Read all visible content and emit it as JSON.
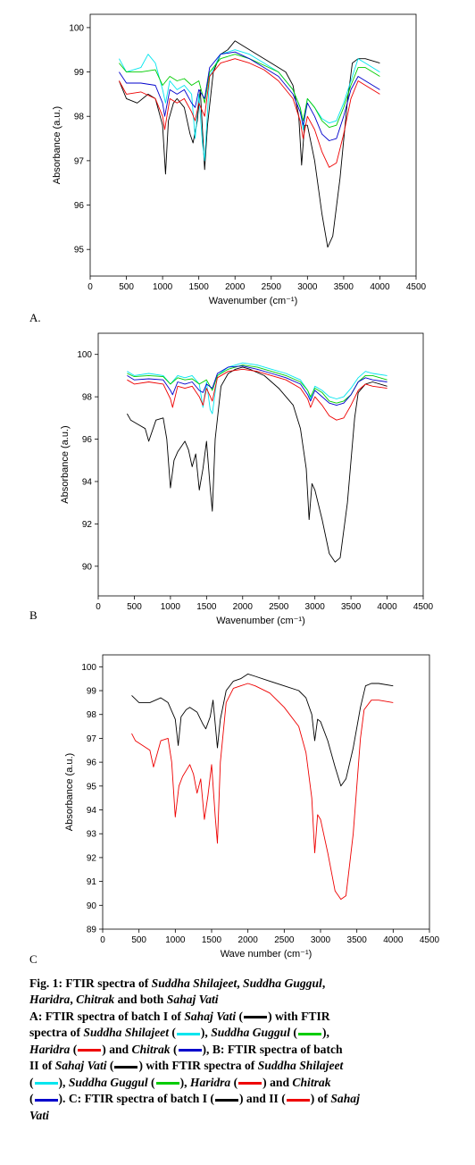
{
  "chart_data": [
    {
      "type": "line",
      "panel_label": "A.",
      "xlabel": "Wavenumber (cm⁻¹)",
      "ylabel": "Absorbance (a.u.)",
      "xlim": [
        0,
        4500
      ],
      "ylim": [
        94.4,
        100.3
      ],
      "xticks": [
        0,
        500,
        1000,
        1500,
        2000,
        2500,
        3000,
        3500,
        4000,
        4500
      ],
      "yticks": [
        95,
        96,
        97,
        98,
        99,
        100
      ],
      "series": [
        {
          "color": "#000000",
          "x": [
            400,
            500,
            650,
            800,
            900,
            1000,
            1040,
            1080,
            1150,
            1200,
            1300,
            1380,
            1420,
            1480,
            1520,
            1580,
            1620,
            1700,
            1800,
            1900,
            2000,
            2100,
            2300,
            2500,
            2700,
            2800,
            2880,
            2920,
            2960,
            3000,
            3100,
            3200,
            3280,
            3350,
            3450,
            3550,
            3620,
            3700,
            3800,
            4000
          ],
          "y": [
            98.8,
            98.4,
            98.3,
            98.5,
            98.4,
            97.8,
            96.7,
            97.9,
            98.3,
            98.4,
            98.2,
            97.6,
            97.4,
            97.9,
            98.6,
            96.8,
            97.8,
            99.0,
            99.4,
            99.5,
            99.7,
            99.6,
            99.4,
            99.2,
            99.0,
            98.7,
            98.0,
            96.9,
            97.8,
            97.8,
            97.0,
            95.8,
            95.05,
            95.3,
            96.6,
            98.3,
            99.2,
            99.3,
            99.3,
            99.2
          ]
        },
        {
          "color": "#00e5ee",
          "x": [
            400,
            500,
            700,
            800,
            900,
            1000,
            1040,
            1100,
            1200,
            1300,
            1400,
            1450,
            1500,
            1550,
            1580,
            1650,
            1800,
            2000,
            2200,
            2400,
            2600,
            2800,
            2900,
            2940,
            3000,
            3100,
            3200,
            3300,
            3400,
            3500,
            3600,
            3700,
            3800,
            4000
          ],
          "y": [
            99.3,
            99.0,
            99.1,
            99.4,
            99.2,
            98.6,
            98.3,
            98.8,
            98.6,
            98.7,
            98.5,
            97.5,
            98.5,
            97.4,
            97.0,
            98.9,
            99.4,
            99.5,
            99.4,
            99.2,
            99.0,
            98.6,
            98.2,
            97.7,
            98.4,
            98.2,
            97.95,
            97.85,
            97.9,
            98.3,
            98.8,
            99.3,
            99.2,
            99.0
          ]
        },
        {
          "color": "#00cc00",
          "x": [
            400,
            500,
            700,
            900,
            1000,
            1100,
            1200,
            1300,
            1400,
            1500,
            1580,
            1650,
            1800,
            2000,
            2200,
            2400,
            2600,
            2800,
            2900,
            2940,
            3000,
            3100,
            3200,
            3300,
            3400,
            3500,
            3600,
            3700,
            3800,
            4000
          ],
          "y": [
            99.2,
            99.0,
            99.0,
            99.05,
            98.7,
            98.9,
            98.8,
            98.85,
            98.7,
            98.8,
            98.3,
            99.0,
            99.3,
            99.4,
            99.3,
            99.15,
            99.0,
            98.6,
            98.2,
            97.9,
            98.4,
            98.2,
            97.9,
            97.75,
            97.8,
            98.2,
            98.7,
            99.1,
            99.1,
            98.9
          ]
        },
        {
          "color": "#ee0000",
          "x": [
            400,
            500,
            700,
            900,
            1000,
            1030,
            1100,
            1200,
            1300,
            1400,
            1450,
            1500,
            1580,
            1650,
            1800,
            2000,
            2200,
            2400,
            2600,
            2800,
            2900,
            2940,
            3000,
            3100,
            3200,
            3300,
            3400,
            3500,
            3600,
            3700,
            3800,
            4000
          ],
          "y": [
            98.8,
            98.5,
            98.55,
            98.4,
            98.0,
            97.7,
            98.4,
            98.3,
            98.4,
            98.1,
            97.9,
            98.3,
            98.0,
            98.9,
            99.2,
            99.3,
            99.2,
            99.05,
            98.8,
            98.4,
            97.9,
            97.5,
            98.0,
            97.7,
            97.2,
            96.85,
            96.95,
            97.6,
            98.4,
            98.8,
            98.7,
            98.5
          ]
        },
        {
          "color": "#0000cc",
          "x": [
            400,
            500,
            700,
            900,
            1000,
            1030,
            1100,
            1200,
            1300,
            1400,
            1450,
            1500,
            1580,
            1650,
            1800,
            2000,
            2200,
            2400,
            2600,
            2800,
            2900,
            2940,
            3000,
            3100,
            3200,
            3300,
            3400,
            3500,
            3600,
            3700,
            3800,
            4000
          ],
          "y": [
            99.0,
            98.75,
            98.75,
            98.7,
            98.3,
            98.0,
            98.6,
            98.5,
            98.6,
            98.3,
            98.2,
            98.6,
            98.4,
            99.1,
            99.4,
            99.45,
            99.3,
            99.1,
            98.9,
            98.5,
            98.1,
            97.8,
            98.3,
            98.0,
            97.6,
            97.45,
            97.5,
            98.0,
            98.6,
            98.9,
            98.8,
            98.6
          ]
        }
      ]
    },
    {
      "type": "line",
      "panel_label": "B",
      "xlabel": "Wavenumber (cm⁻¹)",
      "ylabel": "Absorbance (a.u.)",
      "xlim": [
        0,
        4500
      ],
      "ylim": [
        88.6,
        101
      ],
      "xticks": [
        0,
        500,
        1000,
        1500,
        2000,
        2500,
        3000,
        3500,
        4000,
        4500
      ],
      "yticks": [
        90,
        92,
        94,
        96,
        98,
        100
      ],
      "series": [
        {
          "color": "#000000",
          "x": [
            400,
            450,
            550,
            650,
            700,
            800,
            900,
            950,
            1000,
            1050,
            1100,
            1200,
            1250,
            1300,
            1350,
            1400,
            1450,
            1500,
            1550,
            1580,
            1620,
            1700,
            1800,
            1900,
            2000,
            2100,
            2300,
            2500,
            2700,
            2800,
            2880,
            2920,
            2960,
            3000,
            3100,
            3200,
            3280,
            3350,
            3450,
            3550,
            3600,
            3700,
            3800,
            4000
          ],
          "y": [
            97.2,
            96.9,
            96.7,
            96.5,
            95.9,
            96.9,
            97.0,
            96.0,
            93.7,
            95.0,
            95.4,
            95.9,
            95.5,
            94.7,
            95.3,
            93.6,
            94.6,
            95.9,
            93.7,
            92.6,
            96.0,
            98.5,
            99.1,
            99.3,
            99.4,
            99.3,
            99.0,
            98.4,
            97.6,
            96.5,
            94.6,
            92.2,
            93.9,
            93.6,
            92.2,
            90.6,
            90.2,
            90.4,
            93.0,
            97.0,
            98.2,
            98.6,
            98.7,
            98.5
          ]
        },
        {
          "color": "#00e5ee",
          "x": [
            400,
            500,
            700,
            900,
            1000,
            1100,
            1200,
            1300,
            1400,
            1450,
            1500,
            1550,
            1580,
            1650,
            1800,
            2000,
            2200,
            2400,
            2600,
            2800,
            2900,
            2940,
            3000,
            3100,
            3200,
            3300,
            3400,
            3500,
            3600,
            3700,
            3800,
            4000
          ],
          "y": [
            99.2,
            99.0,
            99.1,
            99.0,
            98.6,
            99.0,
            98.9,
            99.0,
            98.6,
            97.5,
            98.7,
            97.4,
            97.2,
            99.0,
            99.4,
            99.6,
            99.5,
            99.3,
            99.1,
            98.8,
            98.3,
            97.9,
            98.5,
            98.3,
            98.0,
            97.9,
            98.0,
            98.4,
            98.9,
            99.2,
            99.1,
            99.0
          ]
        },
        {
          "color": "#00cc00",
          "x": [
            400,
            500,
            700,
            900,
            1000,
            1100,
            1200,
            1300,
            1400,
            1500,
            1580,
            1650,
            1800,
            2000,
            2200,
            2400,
            2600,
            2800,
            2900,
            2940,
            3000,
            3100,
            3200,
            3300,
            3400,
            3500,
            3600,
            3700,
            3800,
            4000
          ],
          "y": [
            99.1,
            98.95,
            99.0,
            98.95,
            98.6,
            98.9,
            98.8,
            98.85,
            98.6,
            98.8,
            98.3,
            99.0,
            99.3,
            99.5,
            99.4,
            99.2,
            99.0,
            98.7,
            98.3,
            98.0,
            98.4,
            98.2,
            97.8,
            97.7,
            97.8,
            98.1,
            98.7,
            99.0,
            99.0,
            98.8
          ]
        },
        {
          "color": "#ee0000",
          "x": [
            400,
            500,
            700,
            900,
            1000,
            1030,
            1100,
            1200,
            1300,
            1400,
            1450,
            1500,
            1580,
            1650,
            1800,
            2000,
            2200,
            2400,
            2600,
            2800,
            2900,
            2940,
            3000,
            3100,
            3200,
            3300,
            3400,
            3500,
            3600,
            3700,
            3800,
            4000
          ],
          "y": [
            98.8,
            98.6,
            98.7,
            98.6,
            97.9,
            97.5,
            98.5,
            98.4,
            98.5,
            98.0,
            97.6,
            98.4,
            97.8,
            98.9,
            99.2,
            99.3,
            99.2,
            99.0,
            98.8,
            98.4,
            97.9,
            97.5,
            98.0,
            97.6,
            97.1,
            96.9,
            97.0,
            97.6,
            98.3,
            98.6,
            98.5,
            98.4
          ]
        },
        {
          "color": "#0000cc",
          "x": [
            400,
            500,
            700,
            900,
            1000,
            1030,
            1100,
            1200,
            1300,
            1400,
            1450,
            1500,
            1580,
            1650,
            1800,
            2000,
            2200,
            2400,
            2600,
            2800,
            2900,
            2940,
            3000,
            3100,
            3200,
            3300,
            3400,
            3500,
            3600,
            3700,
            3800,
            4000
          ],
          "y": [
            99.0,
            98.8,
            98.85,
            98.8,
            98.3,
            98.1,
            98.7,
            98.6,
            98.7,
            98.3,
            98.2,
            98.6,
            98.4,
            99.1,
            99.4,
            99.45,
            99.3,
            99.1,
            98.9,
            98.6,
            98.1,
            97.8,
            98.3,
            98.0,
            97.7,
            97.6,
            97.7,
            98.1,
            98.7,
            98.9,
            98.8,
            98.7
          ]
        }
      ]
    },
    {
      "type": "line",
      "panel_label": "C",
      "xlabel": "Wave number (cm⁻¹)",
      "ylabel": "Absorbance (a.u.)",
      "xlim": [
        0,
        4500
      ],
      "ylim": [
        89,
        100.5
      ],
      "xticks": [
        0,
        500,
        1000,
        1500,
        2000,
        2500,
        3000,
        3500,
        4000,
        4500
      ],
      "yticks": [
        89,
        90,
        91,
        92,
        93,
        94,
        95,
        96,
        97,
        98,
        99,
        100
      ],
      "series": [
        {
          "color": "#000000",
          "x": [
            400,
            500,
            650,
            800,
            900,
            1000,
            1040,
            1080,
            1150,
            1200,
            1300,
            1380,
            1420,
            1480,
            1520,
            1580,
            1620,
            1700,
            1800,
            1900,
            2000,
            2100,
            2300,
            2500,
            2700,
            2800,
            2880,
            2920,
            2960,
            3000,
            3100,
            3200,
            3280,
            3350,
            3450,
            3550,
            3620,
            3700,
            3800,
            4000
          ],
          "y": [
            98.8,
            98.5,
            98.5,
            98.7,
            98.5,
            97.8,
            96.7,
            97.9,
            98.2,
            98.3,
            98.1,
            97.6,
            97.4,
            97.9,
            98.6,
            96.6,
            97.8,
            99.0,
            99.4,
            99.5,
            99.7,
            99.6,
            99.4,
            99.2,
            99.0,
            98.7,
            98.0,
            96.9,
            97.8,
            97.7,
            96.9,
            95.8,
            95.0,
            95.3,
            96.6,
            98.3,
            99.2,
            99.3,
            99.3,
            99.2
          ]
        },
        {
          "color": "#ee0000",
          "x": [
            400,
            450,
            550,
            650,
            700,
            800,
            900,
            950,
            1000,
            1050,
            1100,
            1200,
            1250,
            1300,
            1350,
            1400,
            1450,
            1500,
            1550,
            1580,
            1620,
            1700,
            1800,
            1900,
            2000,
            2100,
            2300,
            2500,
            2700,
            2800,
            2880,
            2920,
            2960,
            3000,
            3100,
            3200,
            3280,
            3350,
            3450,
            3550,
            3600,
            3700,
            3800,
            4000
          ],
          "y": [
            97.2,
            96.9,
            96.7,
            96.5,
            95.8,
            96.9,
            97.0,
            96.0,
            93.7,
            95.0,
            95.4,
            95.9,
            95.5,
            94.7,
            95.3,
            93.6,
            94.6,
            95.9,
            93.7,
            92.6,
            96.0,
            98.5,
            99.1,
            99.2,
            99.3,
            99.2,
            98.9,
            98.3,
            97.5,
            96.4,
            94.5,
            92.2,
            93.8,
            93.6,
            92.2,
            90.6,
            90.25,
            90.4,
            93.0,
            97.0,
            98.2,
            98.6,
            98.6,
            98.5
          ]
        }
      ]
    }
  ],
  "caption": {
    "l1_a": "Fig. 1: FTIR spectra of ",
    "l1_b": "Suddha Shilajeet",
    "l1_c": ", ",
    "l1_d": "Suddha Guggul",
    "l1_e": ",",
    "l2_a": "Haridra",
    "l2_b": ", ",
    "l2_c": "Chitrak",
    "l2_d": " and both ",
    "l2_e": "Sahaj Vati",
    "l3_a": "A: FTIR spectra of batch I of ",
    "l3_b": "Sahaj Vati",
    "l3_c": " (",
    "l3_d": ") with FTIR",
    "l4_a": "spectra of ",
    "l4_b": "Suddha Shilajeet",
    "l4_c": " (",
    "l4_d": "), ",
    "l4_e": "Suddha Guggul",
    "l4_f": " (",
    "l4_g": "),",
    "l5_a": "Haridra",
    "l5_b": " (",
    "l5_c": ") and ",
    "l5_d": "Chitrak",
    "l5_e": " (",
    "l5_f": "), B: FTIR spectra of batch",
    "l6_a": "II of ",
    "l6_b": "Sahaj Vati",
    "l6_c": " (",
    "l6_d": ") with FTIR spectra of ",
    "l6_e": "Suddha Shilajeet",
    "l7_a": "(",
    "l7_b": "), ",
    "l7_c": "Suddha Guggul",
    "l7_d": " (",
    "l7_e": "), ",
    "l7_f": "Haridra",
    "l7_g": " (",
    "l7_h": ") and ",
    "l7_i": "Chitrak",
    "l8_a": "(",
    "l8_b": "). C: FTIR spectra of batch I (",
    "l8_c": ") and II (",
    "l8_d": ") of ",
    "l8_e": "Sahaj",
    "l9_a": "Vati",
    "colors": {
      "black": "#000000",
      "cyan": "#00e5ee",
      "green": "#00cc00",
      "red": "#ee0000",
      "blue": "#0000cc"
    }
  }
}
